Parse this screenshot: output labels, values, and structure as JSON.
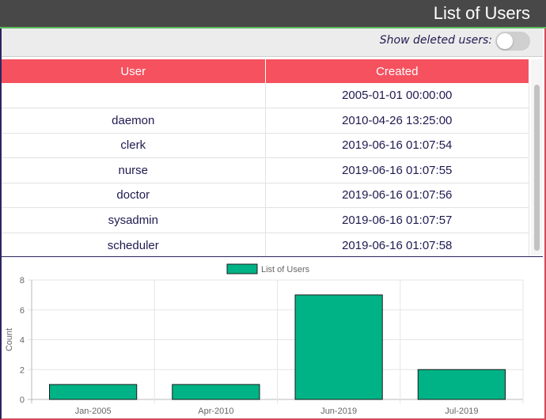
{
  "header": {
    "title": "List of Users"
  },
  "toolbar": {
    "show_deleted_label": "Show deleted users:",
    "show_deleted_on": false
  },
  "table": {
    "columns": [
      "User",
      "Created"
    ],
    "rows": [
      {
        "user": "",
        "created": "2005-01-01 00:00:00"
      },
      {
        "user": "daemon",
        "created": "2010-04-26 13:25:00"
      },
      {
        "user": "clerk",
        "created": "2019-06-16 01:07:54"
      },
      {
        "user": "nurse",
        "created": "2019-06-16 01:07:55"
      },
      {
        "user": "doctor",
        "created": "2019-06-16 01:07:56"
      },
      {
        "user": "sysadmin",
        "created": "2019-06-16 01:07:57"
      },
      {
        "user": "scheduler",
        "created": "2019-06-16 01:07:58"
      }
    ]
  },
  "colors": {
    "header_bar": "#484848",
    "table_header": "#f5515f",
    "bar_fill": "#00b386",
    "text": "#1f1a50"
  },
  "chart_data": {
    "type": "bar",
    "categories": [
      "Jan-2005",
      "Apr-2010",
      "Jun-2019",
      "Jul-2019"
    ],
    "series": [
      {
        "name": "List of Users",
        "values": [
          1,
          1,
          7,
          2
        ]
      }
    ],
    "ylabel": "Count",
    "ylim": [
      0,
      8
    ],
    "yticks": [
      0,
      2,
      4,
      6,
      8
    ],
    "legend": "top-center",
    "grid": true
  }
}
